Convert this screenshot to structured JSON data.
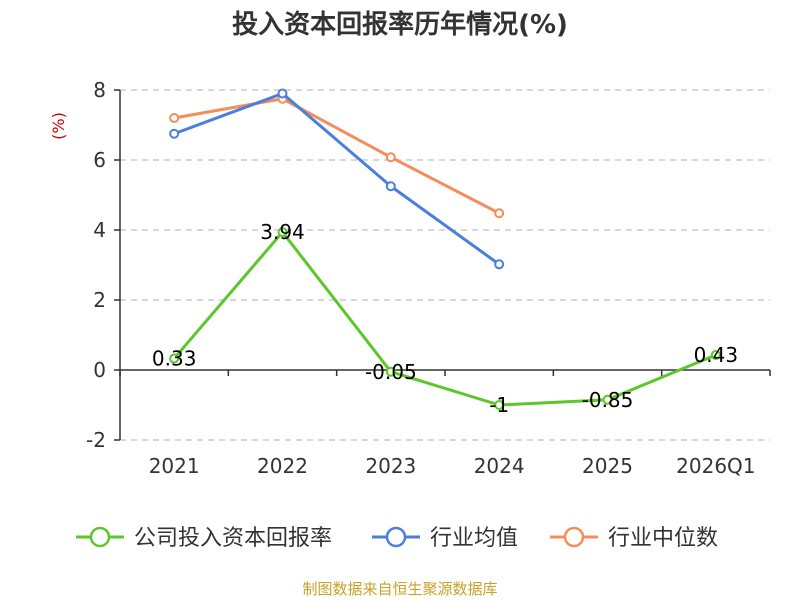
{
  "chart_data": {
    "type": "line",
    "title": "投入资本回报率历年情况(%)",
    "ylabel": "(%)",
    "xlabel": "",
    "categories": [
      "2021",
      "2022",
      "2023",
      "2024",
      "2025",
      "2026Q1"
    ],
    "ylim": [
      -2,
      8
    ],
    "yticks": [
      -2,
      0,
      2,
      4,
      6,
      8
    ],
    "grid": true,
    "legend_position": "bottom",
    "series": [
      {
        "name": "公司投入资本回报率",
        "color": "#5cc72a",
        "values": [
          0.33,
          3.94,
          -0.05,
          -1,
          -0.85,
          0.43
        ],
        "labels": [
          "0.33",
          "3.94",
          "-0.05",
          "-1",
          "-0.85",
          "0.43"
        ]
      },
      {
        "name": "行业均值",
        "color": "#4a7fdc",
        "values": [
          6.75,
          7.9,
          5.25,
          3.02,
          null,
          null
        ]
      },
      {
        "name": "行业中位数",
        "color": "#f58c5a",
        "values": [
          7.2,
          7.75,
          6.08,
          4.48,
          null,
          null
        ]
      }
    ]
  },
  "source": "制图数据来自恒生聚源数据库"
}
